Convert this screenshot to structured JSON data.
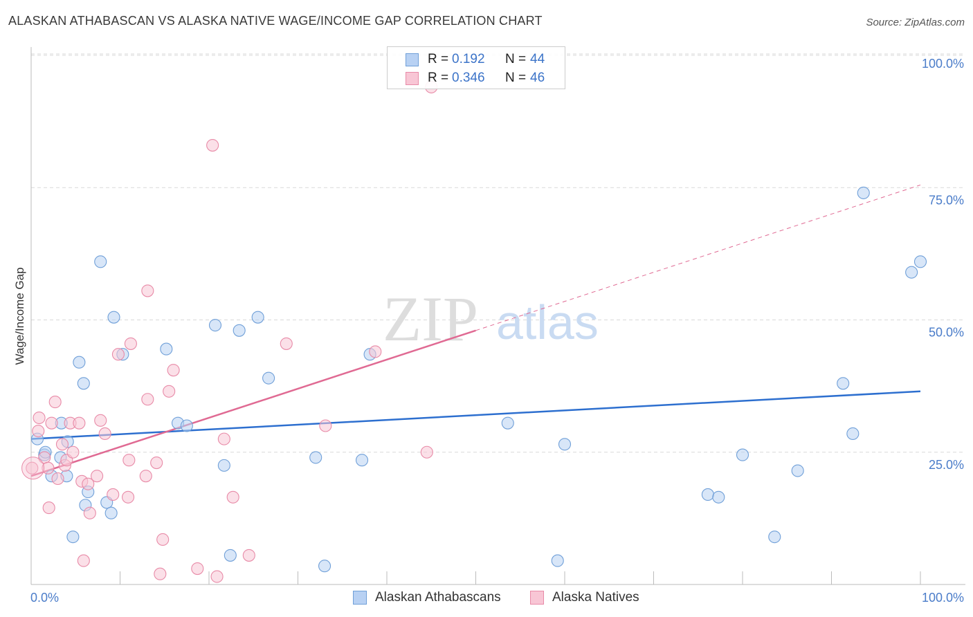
{
  "title": "ALASKAN ATHABASCAN VS ALASKA NATIVE WAGE/INCOME GAP CORRELATION CHART",
  "source": "Source: ZipAtlas.com",
  "watermark": {
    "zip": "ZIP",
    "atlas": "atlas"
  },
  "legend": {
    "series": [
      {
        "r_label": "R =",
        "r_value": "0.192",
        "n_label": "N =",
        "n_value": "44"
      },
      {
        "r_label": "R =",
        "r_value": "0.346",
        "n_label": "N =",
        "n_value": "46"
      }
    ]
  },
  "bottom_legend": [
    "Alaskan Athabascans",
    "Alaska Natives"
  ],
  "colors": {
    "blue_fill": "#b8d1f3",
    "blue_stroke": "#6f9fd8",
    "blue_line": "#2d6fcf",
    "pink_fill": "#f8c6d5",
    "pink_stroke": "#e88aa7",
    "pink_line": "#e06a93",
    "grid": "#d8d8d8",
    "tick_text": "#4a7cc9"
  },
  "chart_data": {
    "type": "scatter",
    "title": "ALASKAN ATHABASCAN VS ALASKA NATIVE WAGE/INCOME GAP CORRELATION CHART",
    "xlabel": "",
    "ylabel": "Wage/Income Gap",
    "xlim": [
      0,
      100
    ],
    "ylim": [
      0,
      100
    ],
    "x_tick_labels": [
      "0.0%",
      "100.0%"
    ],
    "y_ticks": [
      25,
      50,
      75,
      100
    ],
    "y_tick_labels": [
      "25.0%",
      "50.0%",
      "75.0%",
      "100.0%"
    ],
    "grid": true,
    "legend_position": "top-center",
    "series": [
      {
        "name": "Alaskan Athabascans",
        "color": "#6f9fd8",
        "trend": {
          "x": [
            0,
            100
          ],
          "y": [
            27.5,
            36.5
          ],
          "style": "solid"
        },
        "points": [
          [
            0.7,
            27.5
          ],
          [
            1.5,
            24.5
          ],
          [
            1.6,
            25.0
          ],
          [
            2.3,
            20.5
          ],
          [
            3.3,
            24.0
          ],
          [
            3.4,
            30.5
          ],
          [
            4.1,
            27.0
          ],
          [
            4.0,
            20.5
          ],
          [
            4.7,
            9.0
          ],
          [
            5.4,
            42.0
          ],
          [
            5.9,
            38.0
          ],
          [
            6.1,
            15.0
          ],
          [
            6.4,
            17.5
          ],
          [
            7.8,
            61.0
          ],
          [
            8.5,
            15.5
          ],
          [
            9.0,
            13.5
          ],
          [
            9.3,
            50.5
          ],
          [
            10.3,
            43.5
          ],
          [
            15.2,
            44.5
          ],
          [
            16.5,
            30.5
          ],
          [
            17.5,
            30.0
          ],
          [
            20.7,
            49.0
          ],
          [
            21.7,
            22.5
          ],
          [
            22.4,
            5.5
          ],
          [
            23.4,
            48.0
          ],
          [
            25.5,
            50.5
          ],
          [
            26.7,
            39.0
          ],
          [
            32.0,
            24.0
          ],
          [
            33.0,
            3.5
          ],
          [
            37.2,
            23.5
          ],
          [
            38.1,
            43.5
          ],
          [
            53.6,
            30.5
          ],
          [
            59.2,
            4.5
          ],
          [
            60.0,
            26.5
          ],
          [
            76.1,
            17.0
          ],
          [
            77.3,
            16.5
          ],
          [
            80.0,
            24.5
          ],
          [
            83.6,
            9.0
          ],
          [
            86.2,
            21.5
          ],
          [
            91.3,
            38.0
          ],
          [
            92.4,
            28.5
          ],
          [
            93.6,
            74.0
          ],
          [
            99.0,
            59.0
          ],
          [
            100.0,
            61.0
          ]
        ]
      },
      {
        "name": "Alaska Natives",
        "color": "#e88aa7",
        "trend": {
          "x": [
            0,
            50
          ],
          "y": [
            20.5,
            48.0
          ],
          "style": "solid",
          "dashed_extension": {
            "x": [
              50,
              100
            ],
            "y": [
              48.0,
              75.5
            ]
          }
        },
        "points": [
          [
            0.1,
            22.0
          ],
          [
            0.8,
            29.0
          ],
          [
            0.9,
            31.5
          ],
          [
            1.5,
            24.0
          ],
          [
            1.9,
            22.0
          ],
          [
            2.0,
            14.5
          ],
          [
            2.3,
            30.5
          ],
          [
            2.7,
            34.5
          ],
          [
            3.0,
            20.0
          ],
          [
            3.5,
            26.5
          ],
          [
            3.8,
            22.5
          ],
          [
            4.0,
            23.5
          ],
          [
            4.4,
            30.5
          ],
          [
            4.7,
            25.0
          ],
          [
            5.4,
            30.5
          ],
          [
            5.7,
            19.5
          ],
          [
            5.9,
            4.5
          ],
          [
            6.4,
            19.0
          ],
          [
            6.6,
            13.5
          ],
          [
            7.4,
            20.5
          ],
          [
            7.8,
            31.0
          ],
          [
            8.3,
            28.5
          ],
          [
            9.2,
            17.0
          ],
          [
            9.8,
            43.5
          ],
          [
            10.9,
            16.5
          ],
          [
            11.0,
            23.5
          ],
          [
            11.2,
            45.5
          ],
          [
            12.9,
            20.5
          ],
          [
            13.1,
            35.0
          ],
          [
            13.1,
            55.5
          ],
          [
            14.1,
            23.0
          ],
          [
            14.5,
            2.0
          ],
          [
            14.8,
            8.5
          ],
          [
            15.5,
            36.5
          ],
          [
            16.0,
            40.5
          ],
          [
            18.7,
            3.0
          ],
          [
            20.4,
            83.0
          ],
          [
            20.9,
            1.5
          ],
          [
            21.7,
            27.5
          ],
          [
            22.7,
            16.5
          ],
          [
            24.5,
            5.5
          ],
          [
            28.7,
            45.5
          ],
          [
            33.1,
            30.0
          ],
          [
            38.7,
            44.0
          ],
          [
            44.5,
            25.0
          ],
          [
            45.0,
            94.0
          ]
        ]
      }
    ]
  }
}
